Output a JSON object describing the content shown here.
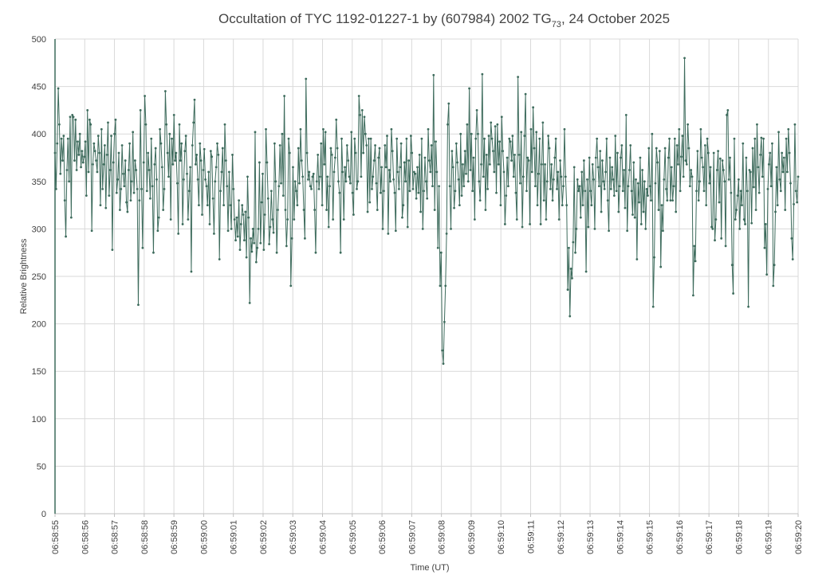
{
  "chart_data": {
    "type": "line",
    "title_prefix": "Occultation of TYC 1192-01227-1 by (607984) 2002 TG",
    "title_subscript": "73",
    "title_suffix": ", 24 October 2025",
    "xlabel": "Time (UT)",
    "ylabel": "Relative Brightness",
    "ylim": [
      0,
      500
    ],
    "yticks": [
      0,
      50,
      100,
      150,
      200,
      250,
      300,
      350,
      400,
      450,
      500
    ],
    "xlim": [
      "06:58:55",
      "06:59:20"
    ],
    "xticks": [
      "06:58:55",
      "06:58:56",
      "06:58:57",
      "06:58:58",
      "06:58:59",
      "06:59:00",
      "06:59:01",
      "06:59:02",
      "06:59:03",
      "06:59:04",
      "06:59:05",
      "06:59:06",
      "06:59:07",
      "06:59:08",
      "06:59:09",
      "06:59:10",
      "06:59:11",
      "06:59:12",
      "06:59:13",
      "06:59:14",
      "06:59:15",
      "06:59:16",
      "06:59:17",
      "06:59:18",
      "06:59:19",
      "06:59:20"
    ],
    "grid": true,
    "line_color": "#3d6b5c",
    "series": [
      {
        "start": "06:58:55",
        "end": "06:59:20",
        "values": [
          380,
          342,
          390,
          448,
          410,
          358,
          395,
          372,
          398,
          330,
          292,
          362,
          395,
          350,
          418,
          312,
          420,
          418,
          372,
          415,
          362,
          392,
          378,
          400,
          365,
          382,
          370,
          376,
          392,
          335,
          425,
          360,
          415,
          410,
          298,
          368,
          390,
          382,
          372,
          360,
          398,
          380,
          325,
          405,
          342,
          368,
          388,
          322,
          378,
          412,
          335,
          362,
          398,
          278,
          370,
          400,
          415,
          338,
          352,
          380,
          320,
          342,
          388,
          358,
          345,
          372,
          328,
          318,
          362,
          390,
          330,
          350,
          402,
          338,
          372,
          362,
          342,
          220,
          330,
          425,
          342,
          280,
          370,
          440,
          410,
          340,
          380,
          362,
          332,
          395,
          345,
          275,
          368,
          385,
          352,
          298,
          312,
          405,
          390,
          365,
          320,
          342,
          445,
          410,
          380,
          355,
          400,
          310,
          395,
          368,
          420,
          372,
          380,
          348,
          295,
          410,
          372,
          390,
          305,
          352,
          382,
          398,
          358,
          310,
          340,
          365,
          255,
          388,
          412,
          436,
          368,
          378,
          352,
          325,
          390,
          372,
          315,
          362,
          384,
          352,
          345,
          325,
          360,
          305,
          382,
          376,
          332,
          295,
          350,
          365,
          390,
          378,
          268,
          340,
          360,
          385,
          325,
          410,
          372,
          345,
          298,
          360,
          325,
          300,
          378,
          342,
          310,
          288,
          312,
          292,
          330,
          278,
          305,
          325,
          315,
          288,
          318,
          270,
          355,
          312,
          222,
          290,
          276,
          300,
          285,
          402,
          265,
          280,
          300,
          370,
          285,
          328,
          358,
          278,
          315,
          405,
          370,
          332,
          284,
          302,
          340,
          310,
          296,
          390,
          350,
          275,
          320,
          345,
          388,
          348,
          400,
          335,
          440,
          320,
          282,
          310,
          395,
          380,
          240,
          290,
          365,
          310,
          350,
          340,
          325,
          385,
          348,
          405,
          372,
          355,
          320,
          290,
          458,
          380,
          352,
          360,
          345,
          342,
          355,
          358,
          320,
          275,
          350,
          378,
          342,
          355,
          390,
          325,
          405,
          368,
          402,
          320,
          355,
          302,
          345,
          385,
          378,
          310,
          360,
          375,
          415,
          385,
          350,
          338,
          275,
          395,
          360,
          310,
          365,
          350,
          388,
          372,
          355,
          348,
          402,
          338,
          315,
          395,
          380,
          342,
          350,
          440,
          420,
          355,
          425,
          380,
          418,
          400,
          388,
          318,
          395,
          328,
          395,
          342,
          355,
          372,
          388,
          348,
          320,
          375,
          385,
          338,
          365,
          300,
          340,
          388,
          365,
          398,
          295,
          362,
          350,
          405,
          382,
          352,
          338,
          298,
          395,
          360,
          342,
          365,
          390,
          312,
          325,
          370,
          350,
          395,
          302,
          372,
          340,
          398,
          380,
          342,
          360,
          358,
          332,
          365,
          338,
          378,
          318,
          395,
          300,
          340,
          375,
          350,
          332,
          405,
          372,
          360,
          388,
          345,
          462,
          320,
          392,
          360,
          280,
          345,
          240,
          275,
          172,
          158,
          202,
          240,
          295,
          410,
          432,
          345,
          300,
          382,
          365,
          322,
          340,
          390,
          370,
          352,
          325,
          400,
          335,
          368,
          345,
          382,
          358,
          410,
          350,
          448,
          362,
          400,
          340,
          375,
          310,
          395,
          425,
          400,
          350,
          330,
          368,
          463,
          355,
          395,
          320,
          378,
          342,
          398,
          368,
          412,
          395,
          382,
          360,
          408,
          338,
          410,
          368,
          392,
          325,
          418,
          382,
          360,
          305,
          335,
          375,
          345,
          395,
          392,
          372,
          398,
          355,
          378,
          338,
          310,
          460,
          378,
          348,
          402,
          302,
          355,
          398,
          442,
          340,
          375,
          372,
          305,
          405,
          360,
          428,
          385,
          345,
          402,
          325,
          358,
          395,
          305,
          368,
          412,
          330,
          368,
          310,
          350,
          398,
          385,
          342,
          368,
          330,
          352,
          375,
          395,
          342,
          360,
          310,
          372,
          355,
          325,
          345,
          405,
          355,
          325,
          236,
          280,
          208,
          258,
          248,
          286,
          365,
          275,
          300,
          352,
          340,
          345,
          312,
          360,
          325,
          372,
          340,
          255,
          352,
          302,
          375,
          340,
          325,
          368,
          352,
          300,
          375,
          395,
          365,
          345,
          382,
          318,
          372,
          350,
          342,
          360,
          395,
          330,
          298,
          375,
          342,
          365,
          352,
          335,
          398,
          340,
          380,
          318,
          345,
          375,
          388,
          340,
          362,
          322,
          420,
          298,
          345,
          362,
          388,
          340,
          315,
          370,
          312,
          352,
          268,
          348,
          328,
          375,
          305,
          362,
          318,
          350,
          300,
          342,
          335,
          385,
          345,
          330,
          400,
          218,
          270,
          348,
          385,
          370,
          320,
          382,
          260,
          325,
          298,
          352,
          385,
          342,
          330,
          375,
          395,
          330,
          365,
          330,
          345,
          395,
          318,
          388,
          368,
          405,
          340,
          376,
          398,
          355,
          480,
          372,
          368,
          410,
          385,
          345,
          362,
          355,
          230,
          282,
          266,
          340,
          382,
          330,
          350,
          405,
          375,
          365,
          340,
          388,
          325,
          395,
          380,
          348,
          365,
          302,
          300,
          380,
          288,
          310,
          362,
          382,
          328,
          374,
          290,
          372,
          362,
          350,
          282,
          420,
          425,
          352,
          375,
          338,
          262,
          232,
          395,
          310,
          320,
          335,
          352,
          300,
          340,
          325,
          390,
          310,
          305,
          375,
          340,
          218,
          362,
          360,
          306,
          385,
          344,
          395,
          320,
          410,
          365,
          338,
          378,
          396,
          355,
          395,
          280,
          305,
          252,
          342,
          368,
          380,
          345,
          390,
          240,
          262,
          318,
          365,
          325,
          402,
          352,
          340,
          380,
          360,
          375,
          320,
          395,
          360,
          405,
          380,
          348,
          290,
          268,
          326,
          410,
          340,
          328,
          355
        ]
      }
    ]
  }
}
